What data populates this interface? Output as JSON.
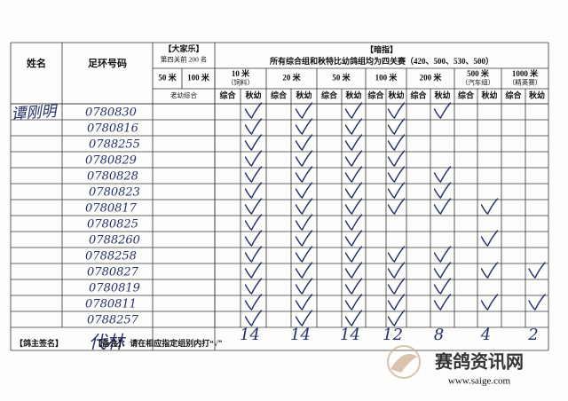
{
  "header": {
    "name_label": "姓名",
    "ring_label": "足环号码",
    "dajiale": {
      "title": "【大家乐】",
      "subtitle": "第四关前 200 名",
      "cols": [
        "50 米",
        "100 米"
      ],
      "sub": "老幼综合"
    },
    "anzhi": {
      "title": "【暗指】",
      "subtitle": "所有综合组和秋特比幼鸽组均为四关赛（420、500、530、500）",
      "groups": [
        {
          "name": "10 米",
          "note": "（饲料）",
          "cols": [
            "综合",
            "秋幼"
          ]
        },
        {
          "name": "20 米",
          "cols": [
            "综合",
            "秋幼"
          ]
        },
        {
          "name": "50 米",
          "cols": [
            "综合",
            "秋幼"
          ]
        },
        {
          "name": "100 米",
          "cols": [
            "综合",
            "秋幼"
          ]
        },
        {
          "name": "200 米",
          "cols": [
            "综合",
            "秋幼"
          ]
        },
        {
          "name": "500 米",
          "note": "（汽车组）",
          "cols": [
            "综合",
            "秋幼"
          ]
        },
        {
          "name": "1000 米",
          "note": "（精英赛）",
          "cols": [
            "综合",
            "秋幼"
          ]
        }
      ]
    }
  },
  "owner": "谭刚明",
  "rows": [
    {
      "ring": "0780830",
      "checks": [
        true,
        true,
        true,
        true,
        true,
        false,
        false
      ]
    },
    {
      "ring": "0780816",
      "checks": [
        true,
        true,
        true,
        true,
        false,
        false,
        false
      ]
    },
    {
      "ring": "0788255",
      "checks": [
        true,
        true,
        true,
        true,
        false,
        false,
        false
      ]
    },
    {
      "ring": "0780829",
      "checks": [
        true,
        true,
        true,
        true,
        false,
        false,
        false
      ]
    },
    {
      "ring": "0780828",
      "checks": [
        true,
        true,
        true,
        true,
        true,
        false,
        false
      ]
    },
    {
      "ring": "0780823",
      "checks": [
        true,
        true,
        true,
        true,
        true,
        false,
        false
      ]
    },
    {
      "ring": "0780817",
      "checks": [
        true,
        true,
        true,
        true,
        true,
        true,
        false
      ]
    },
    {
      "ring": "0780825",
      "checks": [
        true,
        true,
        true,
        false,
        false,
        false,
        false
      ]
    },
    {
      "ring": "0788260",
      "checks": [
        true,
        true,
        true,
        false,
        false,
        true,
        false
      ]
    },
    {
      "ring": "0788258",
      "checks": [
        true,
        true,
        true,
        true,
        true,
        false,
        false
      ]
    },
    {
      "ring": "0780827",
      "checks": [
        true,
        true,
        true,
        true,
        true,
        true,
        true
      ]
    },
    {
      "ring": "0780819",
      "checks": [
        true,
        true,
        true,
        true,
        true,
        false,
        false
      ]
    },
    {
      "ring": "0780811",
      "checks": [
        true,
        true,
        true,
        true,
        true,
        true,
        true
      ]
    },
    {
      "ring": "0788257",
      "checks": [
        true,
        true,
        true,
        true,
        false,
        false,
        false
      ]
    }
  ],
  "totals": [
    14,
    14,
    14,
    12,
    8,
    4,
    2
  ],
  "footer": {
    "sign_label": "【鸽主签名】",
    "signature": "代林",
    "remark": "【备注】：请在相应指定组别内打“√”"
  },
  "watermark": {
    "site": "赛鸽资讯网",
    "url": "www.saige.com"
  }
}
